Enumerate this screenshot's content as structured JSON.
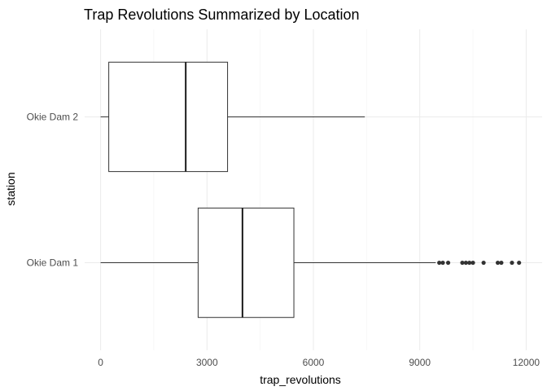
{
  "chart_data": {
    "type": "boxplot",
    "title": "Trap Revolutions Summarized by Location",
    "xlabel": "trap_revolutions",
    "ylabel": "station",
    "xlim": [
      -450,
      12450
    ],
    "x_ticks": [
      0,
      3000,
      6000,
      9000,
      12000
    ],
    "x_tick_labels": [
      "0",
      "3000",
      "6000",
      "9000",
      "12000"
    ],
    "grid": true,
    "categories": [
      "Okie Dam 1",
      "Okie Dam 2"
    ],
    "boxes": [
      {
        "category": "Okie Dam 1",
        "whisker_low": 0,
        "q1": 2750,
        "median": 4000,
        "q3": 5450,
        "whisker_high": 9450,
        "outliers": [
          9550,
          9650,
          9800,
          10200,
          10300,
          10400,
          10500,
          10800,
          11200,
          11300,
          11600,
          11800
        ]
      },
      {
        "category": "Okie Dam 2",
        "whisker_low": 0,
        "q1": 230,
        "median": 2400,
        "q3": 3580,
        "whisker_high": 7450,
        "outliers": []
      }
    ]
  }
}
